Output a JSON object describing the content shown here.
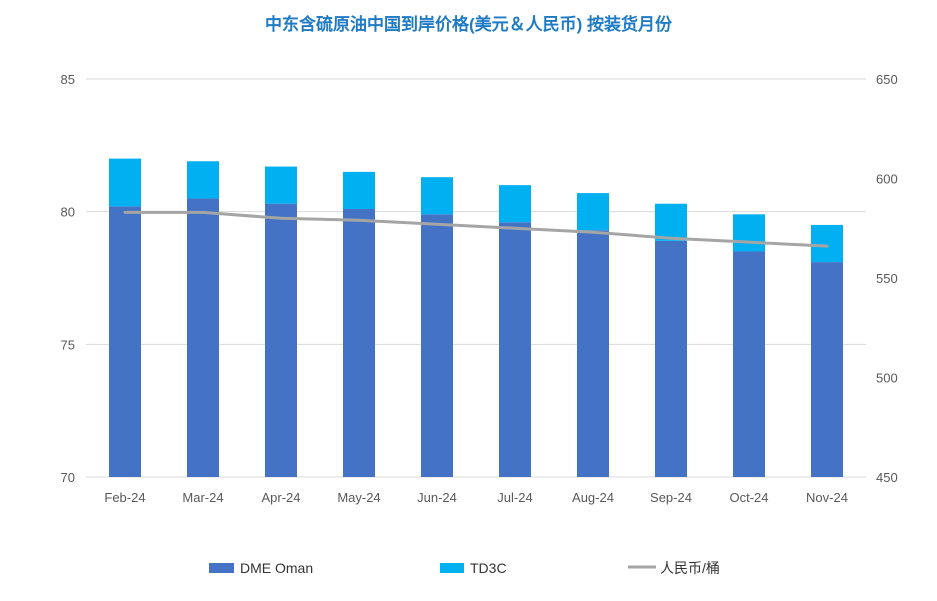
{
  "chart_data": {
    "type": "bar",
    "title": "中东含硫原油中国到岸价格(美元＆人民币) 按装货月份",
    "categories": [
      "Feb-24",
      "Mar-24",
      "Apr-24",
      "May-24",
      "Jun-24",
      "Jul-24",
      "Aug-24",
      "Sep-24",
      "Oct-24",
      "Nov-24"
    ],
    "series": [
      {
        "name": "DME Oman",
        "type": "bar",
        "stacked": true,
        "axis": "left",
        "values": [
          80.2,
          80.5,
          80.3,
          80.1,
          79.9,
          79.6,
          79.3,
          78.9,
          78.5,
          78.1
        ]
      },
      {
        "name": "TD3C",
        "type": "bar",
        "stacked": true,
        "axis": "left",
        "values": [
          1.8,
          1.4,
          1.4,
          1.4,
          1.4,
          1.4,
          1.4,
          1.4,
          1.4,
          1.4
        ]
      },
      {
        "name": "人民币/桶",
        "type": "line",
        "axis": "right",
        "values": [
          583,
          583,
          580,
          579,
          577,
          575,
          573,
          570,
          568,
          566
        ]
      }
    ],
    "ylim": [
      70,
      85
    ],
    "yticks": [
      70,
      75,
      80,
      85
    ],
    "y2lim": [
      450,
      650
    ],
    "y2ticks": [
      450,
      500,
      550,
      600,
      650
    ],
    "grid": true,
    "legend": "bottom",
    "colors": {
      "dme": "#4472C4",
      "td3c": "#00B0F0",
      "rmb": "#A5A5A5",
      "title": "#1F7BC4",
      "grid": "#D9D9D9"
    }
  }
}
